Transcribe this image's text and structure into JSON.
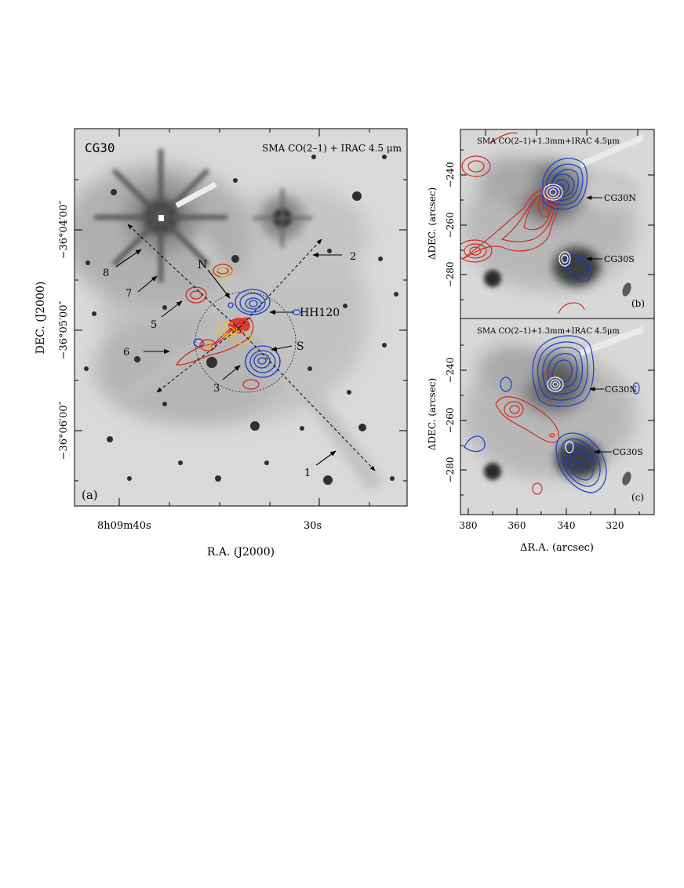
{
  "panel_a": {
    "title": "CG30",
    "subtitle": "SMA CO(2–1) + IRAC 4.5 μm",
    "panel_label": "(a)",
    "xlabel": "R.A. (J2000)",
    "ylabel": "DEC. (J2000)",
    "x_ticks": [
      "8h09m40s",
      "30s"
    ],
    "y_ticks": [
      "−36°04′00″",
      "−36°05′00″",
      "−36°06′00″"
    ],
    "labels": {
      "n": "N",
      "s": "S",
      "hh120": "HH120",
      "k1": "1",
      "k2": "2",
      "k3": "3",
      "k5": "5",
      "k6": "6",
      "k7": "7",
      "k8": "8"
    }
  },
  "panel_b": {
    "title": "SMA CO(2–1)+1.3mm+IRAC 4.5μm",
    "panel_label": "(b)",
    "ylabel": "ΔDEC. (arcsec)",
    "y_ticks": [
      "−240",
      "−260",
      "−280"
    ],
    "source_n": "CG30N",
    "source_s": "CG30S"
  },
  "panel_c": {
    "title": "SMA CO(2–1)+1.3mm+IRAC 4.5μm",
    "panel_label": "(c)",
    "ylabel": "ΔDEC. (arcsec)",
    "xlabel": "ΔR.A. (arcsec)",
    "y_ticks": [
      "−240",
      "−260",
      "−280"
    ],
    "x_ticks": [
      "380",
      "360",
      "340",
      "320"
    ],
    "source_n": "CG30N",
    "source_s": "CG30S"
  },
  "colors": {
    "redshifted": "#d42a1e",
    "blueshifted": "#1c3cc4",
    "dust": "#ffffff",
    "highlight": "#e8c21a",
    "beam": "#555e5c"
  }
}
